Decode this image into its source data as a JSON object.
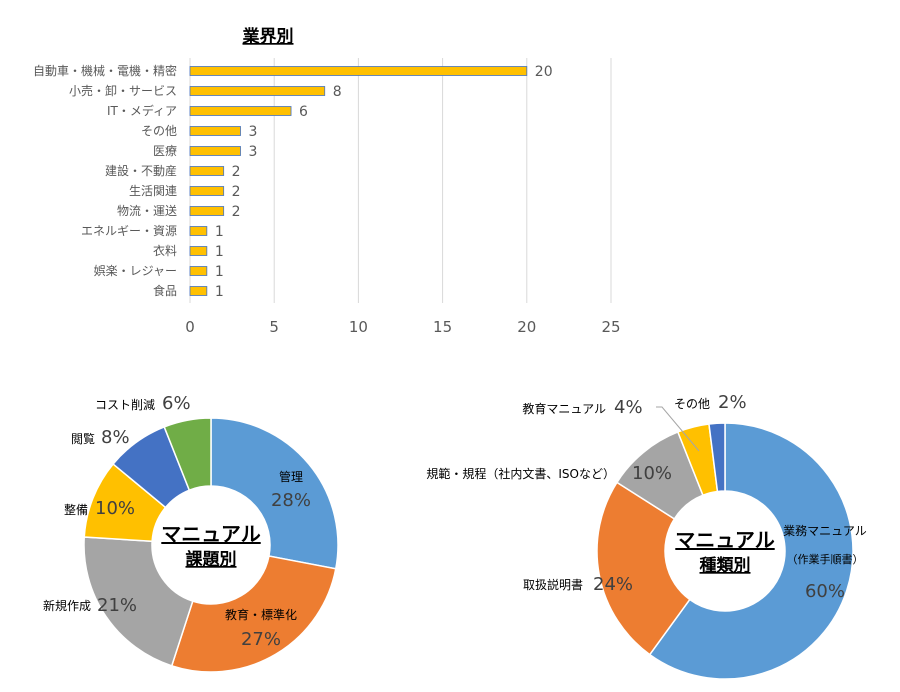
{
  "chart_data": [
    {
      "type": "bar",
      "orientation": "horizontal",
      "title": "業界別",
      "categories": [
        "自動車・機械・電機・精密",
        "小売・卸・サービス",
        "IT・メディア",
        "その他",
        "医療",
        "建設・不動産",
        "生活関連",
        "物流・運送",
        "エネルギー・資源",
        "衣料",
        "娯楽・レジャー",
        "食品"
      ],
      "values": [
        20,
        8,
        6,
        3,
        3,
        2,
        2,
        2,
        1,
        1,
        1,
        1
      ],
      "xlim": [
        0,
        25
      ],
      "xticks": [
        0,
        5,
        10,
        15,
        20,
        25
      ],
      "grid": true,
      "bar_color": "#FFC000",
      "bar_edge_color": "#4472C4"
    },
    {
      "type": "pie",
      "style": "donut",
      "center_label": [
        "マニュアル",
        "課題別"
      ],
      "slices": [
        {
          "label": "管理",
          "value": 28,
          "pct": "28%",
          "color": "#5B9BD5"
        },
        {
          "label": "教育・標準化",
          "value": 27,
          "pct": "27%",
          "color": "#ED7D31"
        },
        {
          "label": "新規作成",
          "value": 21,
          "pct": "21%",
          "color": "#A5A5A5"
        },
        {
          "label": "整備",
          "value": 10,
          "pct": "10%",
          "color": "#FFC000"
        },
        {
          "label": "閲覧",
          "value": 8,
          "pct": "8%",
          "color": "#4472C4"
        },
        {
          "label": "コスト削減",
          "value": 6,
          "pct": "6%",
          "color": "#70AD47"
        }
      ]
    },
    {
      "type": "pie",
      "style": "donut",
      "center_label": [
        "マニュアル",
        "種類別"
      ],
      "slices": [
        {
          "label": "業務マニュアル",
          "sublabel": "（作業手順書）",
          "value": 60,
          "pct": "60%",
          "color": "#5B9BD5"
        },
        {
          "label": "取扱説明書",
          "value": 24,
          "pct": "24%",
          "color": "#ED7D31"
        },
        {
          "label": "規範・規程（社内文書、ISOなど）",
          "value": 10,
          "pct": "10%",
          "color": "#A5A5A5"
        },
        {
          "label": "教育マニュアル",
          "value": 4,
          "pct": "4%",
          "color": "#FFC000"
        },
        {
          "label": "その他",
          "value": 2,
          "pct": "2%",
          "color": "#4472C4"
        }
      ]
    }
  ]
}
